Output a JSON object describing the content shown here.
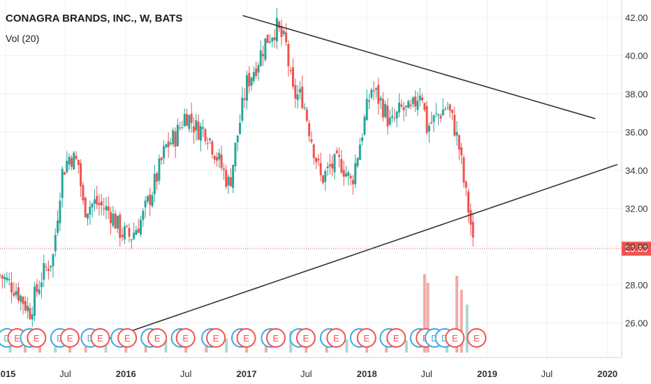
{
  "header": {
    "title": "CONAGRA BRANDS, INC., W, BATS",
    "volume_label": "Vol (20)"
  },
  "colors": {
    "up": "#26a69a",
    "down": "#ef5350",
    "trendline": "#333333",
    "grid": "#eef0f3",
    "price_line": "#ef5350",
    "price_badge": "#ef5350"
  },
  "chart_data": {
    "type": "candlestick",
    "title": "CONAGRA BRANDS, INC., W, BATS",
    "ylim": [
      25.0,
      42.4
    ],
    "y_ticks": [
      "26.00",
      "28.00",
      "30.00",
      "32.00",
      "34.00",
      "36.00",
      "38.00",
      "40.00",
      "42.00"
    ],
    "x_range": [
      "2015-01-01",
      "2020-01-31"
    ],
    "x_ticks": [
      {
        "date": "2015-01-01",
        "label": "2015"
      },
      {
        "date": "2015-07-01",
        "label": "Jul"
      },
      {
        "date": "2016-01-01",
        "label": "2016"
      },
      {
        "date": "2016-07-01",
        "label": "Jul"
      },
      {
        "date": "2017-01-01",
        "label": "2017"
      },
      {
        "date": "2017-07-01",
        "label": "Jul"
      },
      {
        "date": "2018-01-01",
        "label": "2018"
      },
      {
        "date": "2018-07-01",
        "label": "Jul"
      },
      {
        "date": "2019-01-01",
        "label": "2019"
      },
      {
        "date": "2019-07-01",
        "label": "Jul"
      },
      {
        "date": "2020-01-01",
        "label": "2020"
      }
    ],
    "last_price": 29.89,
    "last_price_label": "29.89",
    "price_path": [
      [
        "2014-12-15",
        28.5
      ],
      [
        "2015-02-01",
        27.8
      ],
      [
        "2015-03-15",
        26.6
      ],
      [
        "2015-04-20",
        28.4
      ],
      [
        "2015-05-25",
        29.5
      ],
      [
        "2015-06-20",
        33.8
      ],
      [
        "2015-07-15",
        34.8
      ],
      [
        "2015-08-10",
        34.3
      ],
      [
        "2015-08-25",
        32.0
      ],
      [
        "2015-10-01",
        32.3
      ],
      [
        "2015-11-15",
        31.8
      ],
      [
        "2015-12-15",
        30.8
      ],
      [
        "2016-01-15",
        30.5
      ],
      [
        "2016-02-20",
        31.5
      ],
      [
        "2016-04-01",
        33.5
      ],
      [
        "2016-05-01",
        35.2
      ],
      [
        "2016-06-01",
        35.8
      ],
      [
        "2016-07-01",
        37.0
      ],
      [
        "2016-08-01",
        36.2
      ],
      [
        "2016-09-01",
        36.1
      ],
      [
        "2016-10-01",
        34.8
      ],
      [
        "2016-11-10",
        33.2
      ],
      [
        "2016-12-01",
        35.5
      ],
      [
        "2017-01-01",
        38.5
      ],
      [
        "2017-02-01",
        39.6
      ],
      [
        "2017-03-01",
        40.8
      ],
      [
        "2017-04-01",
        41.5
      ],
      [
        "2017-05-01",
        40.5
      ],
      [
        "2017-05-20",
        38.0
      ],
      [
        "2017-06-20",
        37.8
      ],
      [
        "2017-07-10",
        36.2
      ],
      [
        "2017-08-15",
        33.5
      ],
      [
        "2017-09-15",
        34.2
      ],
      [
        "2017-10-15",
        34.4
      ],
      [
        "2017-11-15",
        33.3
      ],
      [
        "2017-12-15",
        35.8
      ],
      [
        "2018-01-15",
        38.3
      ],
      [
        "2018-02-15",
        37.5
      ],
      [
        "2018-03-15",
        36.3
      ],
      [
        "2018-04-15",
        37.2
      ],
      [
        "2018-05-15",
        37.0
      ],
      [
        "2018-06-15",
        38.4
      ],
      [
        "2018-07-01",
        36.2
      ],
      [
        "2018-08-01",
        36.8
      ],
      [
        "2018-09-01",
        37.4
      ],
      [
        "2018-09-25",
        36.2
      ],
      [
        "2018-10-10",
        35.0
      ],
      [
        "2018-10-25",
        33.0
      ],
      [
        "2018-11-10",
        31.5
      ],
      [
        "2018-11-20",
        29.89
      ]
    ],
    "volume_bars": [
      [
        "2015-01-15",
        0.15
      ],
      [
        "2015-03-01",
        0.12
      ],
      [
        "2015-04-15",
        0.18
      ],
      [
        "2015-06-01",
        0.22
      ],
      [
        "2015-07-15",
        0.16
      ],
      [
        "2015-09-01",
        0.14
      ],
      [
        "2015-11-01",
        0.13
      ],
      [
        "2016-01-01",
        0.2
      ],
      [
        "2016-03-01",
        0.17
      ],
      [
        "2016-05-01",
        0.15
      ],
      [
        "2016-07-01",
        0.14
      ],
      [
        "2016-09-01",
        0.13
      ],
      [
        "2016-11-01",
        0.16
      ],
      [
        "2017-01-01",
        0.14
      ],
      [
        "2017-03-01",
        0.15
      ],
      [
        "2017-05-15",
        0.25
      ],
      [
        "2017-07-01",
        0.18
      ],
      [
        "2017-09-01",
        0.16
      ],
      [
        "2017-11-01",
        0.15
      ],
      [
        "2018-01-01",
        0.18
      ],
      [
        "2018-03-01",
        0.16
      ],
      [
        "2018-05-01",
        0.14
      ],
      [
        "2018-06-25",
        0.9
      ],
      [
        "2018-07-05",
        0.8
      ],
      [
        "2018-09-01",
        0.2
      ],
      [
        "2018-10-01",
        0.88
      ],
      [
        "2018-10-15",
        0.72
      ],
      [
        "2018-11-01",
        0.55
      ]
    ],
    "trendlines": [
      {
        "name": "resistance",
        "from": [
          "2016-12-20",
          42.1
        ],
        "to": [
          "2019-11-25",
          36.7
        ]
      },
      {
        "name": "support",
        "from": [
          "2015-10-10",
          25.0
        ],
        "to": [
          "2020-01-31",
          34.3
        ]
      }
    ],
    "event_markers": [
      [
        "2015-01-05",
        "D"
      ],
      [
        "2015-02-05",
        "E"
      ],
      [
        "2015-03-15",
        "D"
      ],
      [
        "2015-04-05",
        "E"
      ],
      [
        "2015-06-15",
        "D"
      ],
      [
        "2015-07-15",
        "E"
      ],
      [
        "2015-09-15",
        "D"
      ],
      [
        "2015-10-15",
        "E"
      ],
      [
        "2015-12-15",
        "D"
      ],
      [
        "2016-01-05",
        "E"
      ],
      [
        "2016-03-15",
        "D"
      ],
      [
        "2016-04-05",
        "E"
      ],
      [
        "2016-06-15",
        "D"
      ],
      [
        "2016-06-30",
        "E"
      ],
      [
        "2016-09-15",
        "D"
      ],
      [
        "2016-09-30",
        "E"
      ],
      [
        "2016-12-15",
        "D"
      ],
      [
        "2016-12-31",
        "E"
      ],
      [
        "2017-03-15",
        "D"
      ],
      [
        "2017-03-31",
        "E"
      ],
      [
        "2017-06-10",
        "D"
      ],
      [
        "2017-06-30",
        "E"
      ],
      [
        "2017-09-10",
        "D"
      ],
      [
        "2017-09-30",
        "E"
      ],
      [
        "2017-12-10",
        "D"
      ],
      [
        "2017-12-31",
        "E"
      ],
      [
        "2018-03-10",
        "D"
      ],
      [
        "2018-03-31",
        "E"
      ],
      [
        "2018-06-10",
        "D"
      ],
      [
        "2018-06-28",
        "E"
      ],
      [
        "2018-07-25",
        "D"
      ],
      [
        "2018-08-25",
        "D"
      ],
      [
        "2018-09-25",
        "E"
      ],
      [
        "2018-11-30",
        "E"
      ]
    ]
  }
}
